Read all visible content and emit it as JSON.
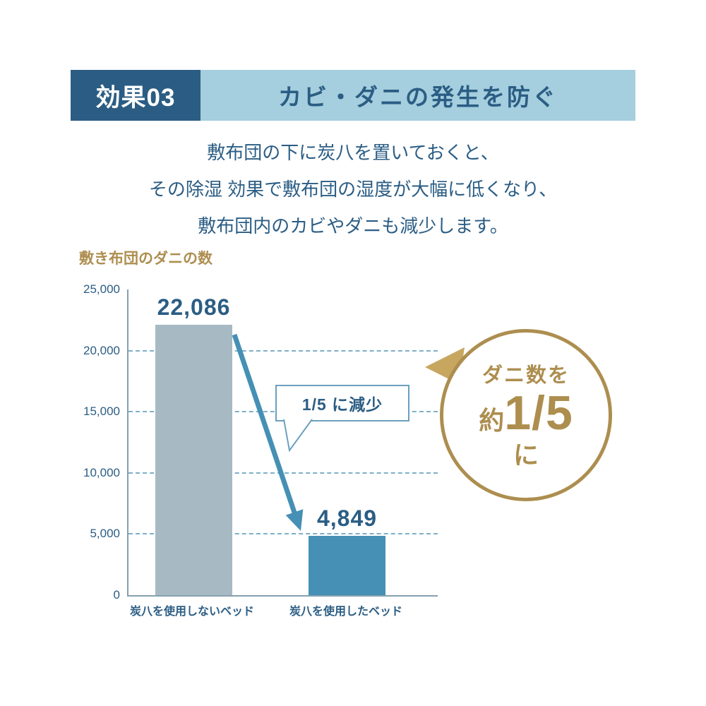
{
  "header": {
    "badge": "効果03",
    "title": "カビ・ダニの発生を防ぐ"
  },
  "description": {
    "line1": "敷布団の下に炭八を置いておくと、",
    "line2": "その除湿 効果で敷布団の湿度が大幅に低くなり、",
    "line3": "敷布団内のカビやダニも減少します。"
  },
  "chart_data": {
    "type": "bar",
    "title": "敷き布団のダニの数",
    "categories": [
      "炭八を使用しないベッド",
      "炭八を使用したベッド"
    ],
    "values": [
      22086,
      4849
    ],
    "value_labels": [
      "22,086",
      "4,849"
    ],
    "ylim": [
      0,
      25000
    ],
    "yticks": [
      0,
      5000,
      10000,
      15000,
      20000,
      25000
    ],
    "ytick_labels": [
      "0",
      "5,000",
      "10,000",
      "15,000",
      "20,000",
      "25,000"
    ],
    "grid": "horizontal-dashed",
    "legend": "none",
    "bar_colors": [
      "#a7b9c3",
      "#4590b4"
    ],
    "annotation": "1/5 に減少"
  },
  "badge_circle": {
    "top_text": "ダニ数を",
    "approx": "約",
    "fraction": "1/5",
    "bottom_text": "に"
  },
  "colors": {
    "dark_blue": "#2b5d84",
    "light_blue": "#a5cede",
    "gold": "#ad8e4f",
    "gold_light": "#c7a760",
    "bar_gray": "#a7b9c3",
    "bar_teal": "#4590b4",
    "grid_blue": "#7fafc9"
  }
}
